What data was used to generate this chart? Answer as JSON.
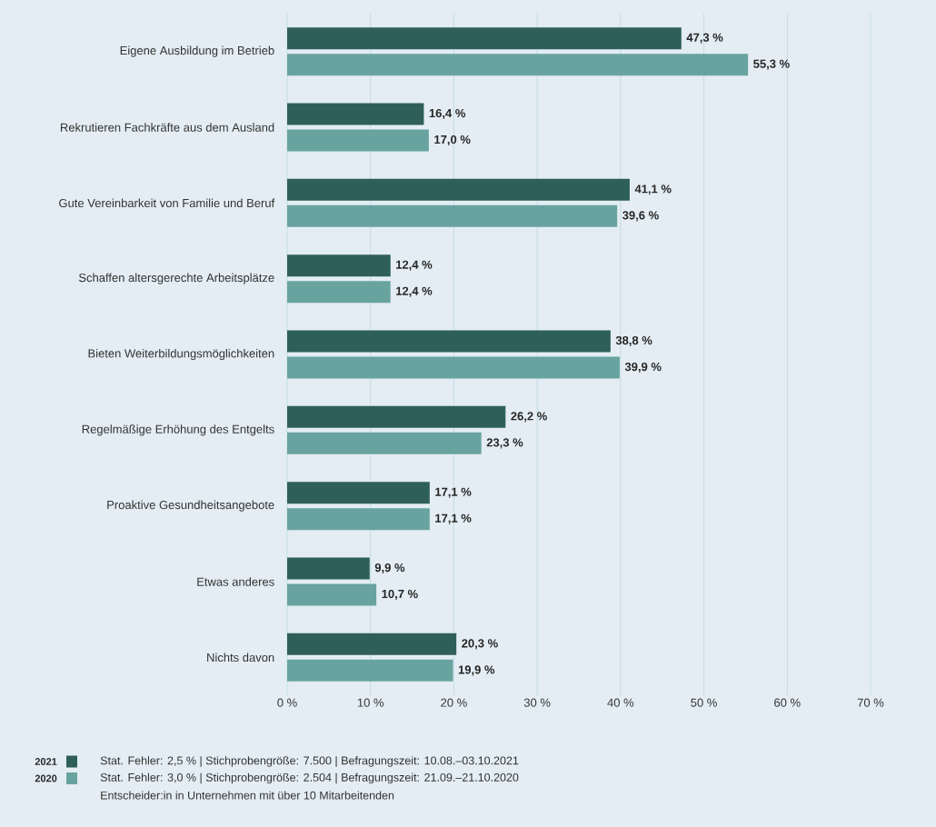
{
  "chart_data": {
    "type": "bar",
    "orientation": "horizontal",
    "categories": [
      "Eigene Ausbildung im Betrieb",
      "Rekrutieren Fachkräfte aus dem Ausland",
      "Gute Vereinbarkeit von Familie und Beruf",
      "Schaffen altersgerechte Arbeitsplätze",
      "Bieten Weiterbildungsmöglichkeiten",
      "Regelmäßige Erhöhung des Entgelts",
      "Proaktive Gesundheitsangebote",
      "Etwas anderes",
      "Nichts davon"
    ],
    "series": [
      {
        "name": "2021",
        "color": "#2f5f5b",
        "values": [
          47.3,
          16.4,
          41.1,
          12.4,
          38.8,
          26.2,
          17.1,
          9.9,
          20.3
        ],
        "value_labels": [
          "47,3 %",
          "16,4 %",
          "41,1 %",
          "12,4 %",
          "38,8 %",
          "26,2 %",
          "17,1 %",
          "9,9 %",
          "20,3 %"
        ]
      },
      {
        "name": "2020",
        "color": "#69a3a0",
        "values": [
          55.3,
          17.0,
          39.6,
          12.4,
          39.9,
          23.3,
          17.1,
          10.7,
          19.9
        ],
        "value_labels": [
          "55,3 %",
          "17,0 %",
          "39,6 %",
          "12,4 %",
          "39,9 %",
          "23,3 %",
          "17,1 %",
          "10,7 %",
          "19,9 %"
        ]
      }
    ],
    "xlim": [
      0,
      70
    ],
    "xticks": [
      {
        "value": 0,
        "label": "0 %"
      },
      {
        "value": 10,
        "label": "10 %"
      },
      {
        "value": 20,
        "label": "20 %"
      },
      {
        "value": 30,
        "label": "30 %"
      },
      {
        "value": 40,
        "label": "40 %"
      },
      {
        "value": 50,
        "label": "50 %"
      },
      {
        "value": 60,
        "label": "60 %"
      },
      {
        "value": 70,
        "label": "70 %"
      }
    ],
    "grid": "x",
    "legend": "bottom left",
    "annotations": [
      "Stat. Fehler: 2,5 % | Stichprobengröße: 7.500 | Befragungszeit: 10.08.–03.10.2021",
      "Stat. Fehler: 3,0 % | Stichprobengröße: 2.504 | Befragungszeit: 21.09.–21.10.2020",
      "Entscheider:in in Unternehmen mit über 10 Mitarbeitenden"
    ]
  }
}
